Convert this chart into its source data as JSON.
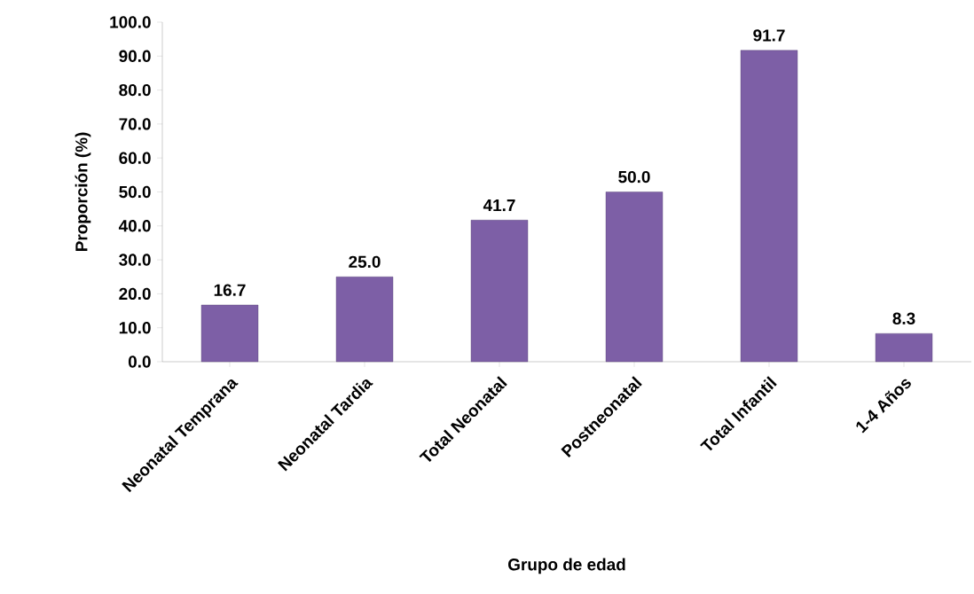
{
  "chart_data": {
    "type": "bar",
    "xlabel": "Grupo de edad",
    "ylabel": "Proporción (%)",
    "categories": [
      "Neonatal Temprana",
      "Neonatal Tardia",
      "Total Neonatal",
      "Postneonatal",
      "Total Infantil",
      "1-4 Años"
    ],
    "values": [
      16.7,
      25.0,
      41.7,
      50.0,
      91.7,
      8.3
    ],
    "value_labels": [
      "16.7",
      "25.0",
      "41.7",
      "50.0",
      "91.7",
      "8.3"
    ],
    "color": "#7d5fa6",
    "ylim": [
      0,
      100
    ],
    "yticks": [
      {
        "value": 0,
        "label": "0.0"
      },
      {
        "value": 10,
        "label": "10.0"
      },
      {
        "value": 20,
        "label": "20.0"
      },
      {
        "value": 30,
        "label": "30.0"
      },
      {
        "value": 40,
        "label": "40.0"
      },
      {
        "value": 50,
        "label": "50.0"
      },
      {
        "value": 60,
        "label": "60.0"
      },
      {
        "value": 70,
        "label": "70.0"
      },
      {
        "value": 80,
        "label": "80.0"
      },
      {
        "value": 90,
        "label": "90.0"
      },
      {
        "value": 100,
        "label": "100.0"
      }
    ],
    "grid": false
  }
}
